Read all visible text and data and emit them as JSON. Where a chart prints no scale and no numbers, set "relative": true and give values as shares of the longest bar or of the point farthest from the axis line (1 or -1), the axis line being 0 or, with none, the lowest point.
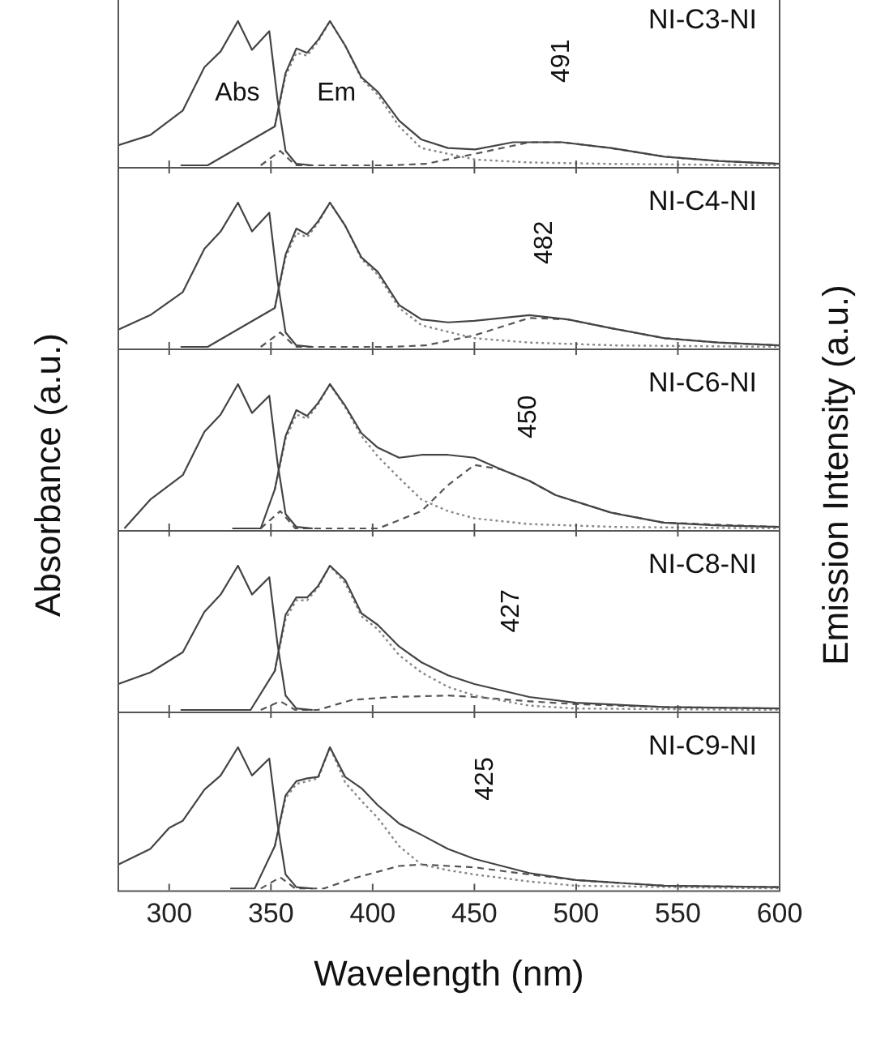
{
  "chart_data": [
    {
      "type": "line",
      "relative": true,
      "title": "NI-C3-NI",
      "xlim": [
        275,
        600
      ],
      "xticks": [
        300,
        350,
        400,
        450,
        500,
        550,
        600
      ],
      "tick_labels": false,
      "legend": false,
      "grid": false,
      "annotations": [
        "Abs",
        "Em",
        "491"
      ],
      "series": [
        {
          "type": "line",
          "color": "#444444",
          "line_style": "solid",
          "x": [
            275,
            290.7,
            306.7,
            317.3,
            325.3,
            333.8,
            340.7,
            349.2,
            353.2,
            357.2,
            362.5,
            370.5
          ],
          "values": [
            0.14,
            0.21,
            0.38,
            0.68,
            0.79,
            1.0,
            0.8,
            0.93,
            0.46,
            0.1,
            0.01,
            0
          ]
        },
        {
          "type": "line",
          "color": "#444444",
          "line_style": "solid",
          "x": [
            305.6,
            318.9,
            351.9,
            357.2,
            362.5,
            367.8,
            373.2,
            379,
            386.5,
            394.5,
            402.5,
            413,
            423.8,
            437,
            450.4,
            469,
            493,
            517,
            543.5,
            570,
            600
          ],
          "values": [
            0,
            0,
            0.27,
            0.64,
            0.81,
            0.78,
            0.87,
            1.0,
            0.83,
            0.61,
            0.51,
            0.31,
            0.18,
            0.12,
            0.11,
            0.16,
            0.16,
            0.12,
            0.06,
            0.03,
            0.01
          ]
        },
        {
          "type": "line",
          "color": "#888888",
          "line_style": "dotted",
          "x": [
            351.9,
            357.2,
            362.5,
            367.8,
            373.2,
            379,
            386.5,
            394.5,
            402.5,
            413,
            423.8,
            450.4,
            477,
            517,
            600
          ],
          "values": [
            0.27,
            0.62,
            0.78,
            0.76,
            0.86,
            1.0,
            0.83,
            0.6,
            0.49,
            0.27,
            0.12,
            0.04,
            0.02,
            0.01,
            0
          ]
        },
        {
          "type": "line",
          "color": "#555555",
          "line_style": "dashed",
          "x": [
            345,
            354.6,
            362,
            407.8,
            426,
            450.4,
            477,
            493,
            517,
            543.5,
            570,
            600
          ],
          "values": [
            0,
            0.1,
            0,
            0,
            0.01,
            0.08,
            0.16,
            0.16,
            0.12,
            0.06,
            0.03,
            0.01
          ]
        }
      ]
    },
    {
      "type": "line",
      "relative": true,
      "title": "NI-C4-NI",
      "xlim": [
        275,
        600
      ],
      "xticks": [
        300,
        350,
        400,
        450,
        500,
        550,
        600
      ],
      "tick_labels": false,
      "legend": false,
      "grid": false,
      "annotations": [
        "482"
      ],
      "series": [
        {
          "type": "line",
          "color": "#444444",
          "line_style": "solid",
          "x": [
            275,
            290.7,
            306.7,
            317.3,
            325.3,
            333.8,
            340.7,
            349.2,
            353.2,
            357.2,
            362.5,
            370.5
          ],
          "values": [
            0.12,
            0.22,
            0.38,
            0.68,
            0.8,
            1.0,
            0.8,
            0.93,
            0.46,
            0.1,
            0.01,
            0
          ]
        },
        {
          "type": "line",
          "color": "#444444",
          "line_style": "solid",
          "x": [
            305.6,
            318.9,
            351.9,
            357.2,
            362.5,
            367.8,
            373.2,
            379,
            386.5,
            394.5,
            402.5,
            413,
            424,
            437,
            450,
            477,
            496,
            517,
            543.5,
            570,
            600
          ],
          "values": [
            0,
            0,
            0.27,
            0.64,
            0.82,
            0.78,
            0.87,
            1.0,
            0.84,
            0.62,
            0.52,
            0.29,
            0.19,
            0.17,
            0.18,
            0.22,
            0.19,
            0.13,
            0.06,
            0.03,
            0.01
          ]
        },
        {
          "type": "line",
          "color": "#888888",
          "line_style": "dotted",
          "x": [
            351.9,
            357.2,
            362.5,
            367.8,
            373.2,
            379,
            386.5,
            394.5,
            402.5,
            413,
            424,
            450,
            477,
            520,
            600
          ],
          "values": [
            0.27,
            0.62,
            0.79,
            0.76,
            0.86,
            1.0,
            0.84,
            0.61,
            0.5,
            0.27,
            0.15,
            0.06,
            0.03,
            0.01,
            0
          ]
        },
        {
          "type": "line",
          "color": "#555555",
          "line_style": "dashed",
          "x": [
            345,
            354.6,
            362,
            407.8,
            426,
            450,
            477,
            496,
            517,
            543.5,
            570,
            600
          ],
          "values": [
            0,
            0.1,
            0,
            0,
            0.01,
            0.08,
            0.2,
            0.19,
            0.13,
            0.06,
            0.03,
            0.01
          ]
        }
      ]
    },
    {
      "type": "line",
      "relative": true,
      "title": "NI-C6-NI",
      "xlim": [
        275,
        600
      ],
      "xticks": [
        300,
        350,
        400,
        450,
        500,
        550,
        600
      ],
      "tick_labels": false,
      "legend": false,
      "grid": false,
      "ylabel": "Absorbance (a.u.)",
      "y2label": "Emission Intensity (a.u.)",
      "annotations": [
        "450"
      ],
      "series": [
        {
          "type": "line",
          "color": "#444444",
          "line_style": "solid",
          "x": [
            278,
            290.7,
            306.7,
            317.3,
            325.3,
            333.8,
            340.7,
            349.2,
            353.2,
            357.2,
            362.5,
            370.5
          ],
          "values": [
            0,
            0.2,
            0.37,
            0.67,
            0.79,
            1.0,
            0.8,
            0.92,
            0.46,
            0.1,
            0.01,
            0
          ]
        },
        {
          "type": "line",
          "color": "#444444",
          "line_style": "solid",
          "x": [
            331,
            345,
            351.9,
            357.2,
            362.5,
            367.8,
            373.2,
            379,
            386.5,
            394.5,
            402.5,
            413,
            424,
            437,
            450,
            463,
            477,
            490,
            517,
            543,
            570,
            600
          ],
          "values": [
            0,
            0,
            0.27,
            0.64,
            0.82,
            0.78,
            0.87,
            1.0,
            0.85,
            0.66,
            0.56,
            0.49,
            0.51,
            0.51,
            0.49,
            0.41,
            0.33,
            0.23,
            0.11,
            0.04,
            0.02,
            0.01
          ]
        },
        {
          "type": "line",
          "color": "#888888",
          "line_style": "dotted",
          "x": [
            351.9,
            357.2,
            362.5,
            367.8,
            373.2,
            379,
            386.5,
            394.5,
            402.5,
            413,
            424,
            437,
            450,
            477,
            520,
            600
          ],
          "values": [
            0.27,
            0.62,
            0.79,
            0.76,
            0.86,
            1.0,
            0.84,
            0.64,
            0.5,
            0.35,
            0.2,
            0.12,
            0.07,
            0.03,
            0.01,
            0
          ]
        },
        {
          "type": "line",
          "color": "#555555",
          "line_style": "dashed",
          "x": [
            345,
            354.6,
            362,
            402.8,
            424,
            437,
            450,
            463,
            477,
            490,
            517,
            543,
            600
          ],
          "values": [
            0,
            0.12,
            0,
            0,
            0.12,
            0.3,
            0.44,
            0.41,
            0.33,
            0.23,
            0.11,
            0.04,
            0.01
          ]
        }
      ]
    },
    {
      "type": "line",
      "relative": true,
      "title": "NI-C8-NI",
      "xlim": [
        275,
        600
      ],
      "xticks": [
        300,
        350,
        400,
        450,
        500,
        550,
        600
      ],
      "tick_labels": false,
      "legend": false,
      "grid": false,
      "annotations": [
        "427"
      ],
      "series": [
        {
          "type": "line",
          "color": "#444444",
          "line_style": "solid",
          "x": [
            275,
            290.7,
            306.7,
            317.3,
            325.3,
            333.8,
            340.7,
            349.2,
            353.2,
            357.2,
            362.5,
            370.5
          ],
          "values": [
            0.18,
            0.26,
            0.4,
            0.68,
            0.8,
            1.0,
            0.8,
            0.92,
            0.46,
            0.1,
            0.01,
            0
          ]
        },
        {
          "type": "line",
          "color": "#444444",
          "line_style": "solid",
          "x": [
            305.6,
            340,
            351.9,
            357.2,
            362.5,
            367.8,
            373.2,
            379,
            386.5,
            394.5,
            402.5,
            413,
            424,
            437,
            450,
            477,
            500,
            543,
            600
          ],
          "values": [
            0,
            0,
            0.27,
            0.66,
            0.78,
            0.78,
            0.86,
            1.0,
            0.9,
            0.67,
            0.59,
            0.44,
            0.33,
            0.24,
            0.18,
            0.09,
            0.05,
            0.02,
            0.01
          ]
        },
        {
          "type": "line",
          "color": "#888888",
          "line_style": "dotted",
          "x": [
            351.9,
            357.2,
            362.5,
            367.8,
            373.2,
            379,
            386.5,
            394.5,
            402.5,
            413,
            424,
            437,
            450,
            477,
            500,
            600
          ],
          "values": [
            0.27,
            0.63,
            0.76,
            0.76,
            0.85,
            1.0,
            0.88,
            0.65,
            0.56,
            0.38,
            0.26,
            0.16,
            0.1,
            0.03,
            0.01,
            0
          ]
        },
        {
          "type": "line",
          "color": "#555555",
          "line_style": "dashed",
          "x": [
            345,
            354.6,
            362,
            373,
            390,
            410,
            437,
            450,
            477,
            500,
            543,
            600
          ],
          "values": [
            0,
            0.06,
            0,
            0,
            0.07,
            0.09,
            0.1,
            0.09,
            0.06,
            0.04,
            0.02,
            0.01
          ]
        }
      ]
    },
    {
      "type": "line",
      "relative": true,
      "title": "NI-C9-NI",
      "xlabel": "Wavelength (nm)",
      "xlim": [
        275,
        600
      ],
      "xticks": [
        300,
        350,
        400,
        450,
        500,
        550,
        600
      ],
      "tick_labels": "x",
      "legend": false,
      "grid": false,
      "annotations": [
        "425"
      ],
      "series": [
        {
          "type": "line",
          "color": "#444444",
          "line_style": "solid",
          "x": [
            275,
            290.7,
            300,
            306.7,
            317.3,
            325.3,
            333.8,
            340.7,
            349.2,
            353.2,
            357.2,
            362.5,
            370.5
          ],
          "values": [
            0.17,
            0.28,
            0.43,
            0.48,
            0.7,
            0.8,
            1.0,
            0.8,
            0.92,
            0.46,
            0.1,
            0.01,
            0
          ]
        },
        {
          "type": "line",
          "color": "#444444",
          "line_style": "solid",
          "x": [
            330,
            342,
            351.9,
            357.2,
            362.5,
            367.8,
            373.2,
            379,
            386.5,
            394.5,
            402.5,
            413,
            424,
            437,
            450,
            477,
            500,
            543,
            600
          ],
          "values": [
            0,
            0,
            0.3,
            0.66,
            0.76,
            0.78,
            0.79,
            1.0,
            0.79,
            0.71,
            0.59,
            0.46,
            0.38,
            0.28,
            0.21,
            0.11,
            0.06,
            0.02,
            0.01
          ]
        },
        {
          "type": "line",
          "color": "#888888",
          "line_style": "dotted",
          "x": [
            351.9,
            357.2,
            362.5,
            367.8,
            373.2,
            379,
            386.5,
            394.5,
            402.5,
            413,
            424,
            437,
            450,
            477,
            500,
            600
          ],
          "values": [
            0.3,
            0.64,
            0.74,
            0.76,
            0.78,
            1.0,
            0.75,
            0.62,
            0.5,
            0.3,
            0.17,
            0.13,
            0.1,
            0.05,
            0.02,
            0
          ]
        },
        {
          "type": "line",
          "color": "#555555",
          "line_style": "dashed",
          "x": [
            345,
            354.6,
            362,
            375.9,
            390,
            413,
            424,
            437,
            450,
            477,
            500,
            543,
            600
          ],
          "values": [
            0,
            0.08,
            0,
            0,
            0.07,
            0.16,
            0.17,
            0.16,
            0.15,
            0.1,
            0.06,
            0.02,
            0.01
          ]
        }
      ]
    }
  ]
}
